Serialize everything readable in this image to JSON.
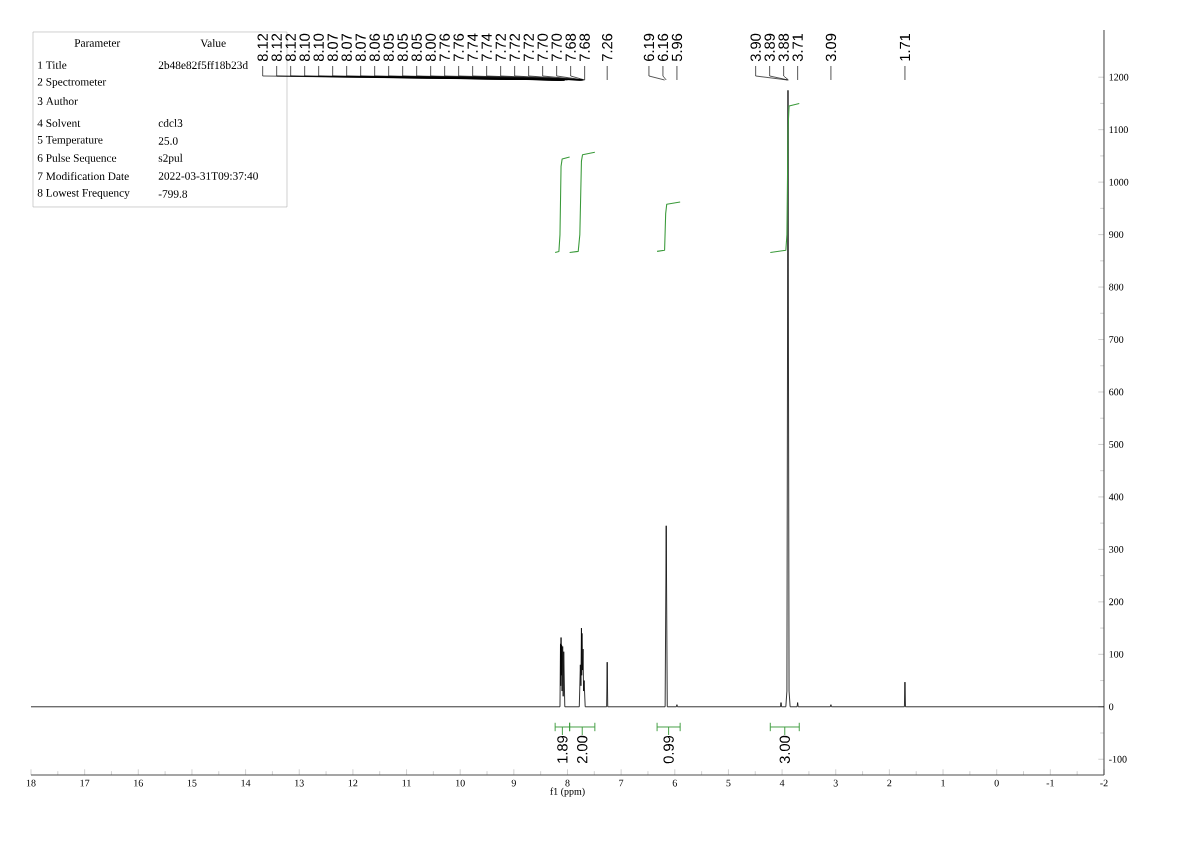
{
  "chart_data": {
    "type": "line",
    "xlabel": "f1 (ppm)",
    "xlim": [
      18,
      -2
    ],
    "ylim": [
      -130,
      1290
    ],
    "xticks": [
      18,
      17,
      16,
      15,
      14,
      13,
      12,
      11,
      10,
      9,
      8,
      7,
      6,
      5,
      4,
      3,
      2,
      1,
      0,
      -1,
      -2
    ],
    "yticks": [
      -100,
      0,
      100,
      200,
      300,
      400,
      500,
      600,
      700,
      800,
      900,
      1000,
      1100,
      1200
    ],
    "series": [
      {
        "color": "#000000",
        "x": [
          18,
          8.2,
          8.14,
          8.13,
          8.125,
          8.12,
          8.115,
          8.11,
          8.1,
          8.09,
          8.08,
          8.07,
          8.05,
          7.78,
          7.76,
          7.75,
          7.74,
          7.735,
          7.73,
          7.72,
          7.71,
          7.7,
          7.69,
          7.67,
          7.27,
          7.26,
          7.25,
          6.18,
          6.16,
          6.14,
          5.97,
          5.96,
          5.95,
          4.03,
          4.02,
          4.01,
          3.93,
          3.91,
          3.89,
          3.87,
          3.85,
          3.72,
          3.71,
          3.7,
          3.1,
          3.09,
          3.08,
          1.72,
          1.71,
          1.7,
          -2
        ],
        "values": [
          0,
          0,
          0,
          120,
          40,
          132,
          60,
          118,
          30,
          115,
          20,
          105,
          0,
          0,
          80,
          40,
          150,
          60,
          140,
          70,
          110,
          30,
          50,
          0,
          0,
          85,
          0,
          0,
          345,
          0,
          0,
          4,
          0,
          0,
          8,
          0,
          0,
          30,
          1175,
          30,
          0,
          0,
          8,
          0,
          0,
          4,
          0,
          0,
          47,
          0,
          0
        ]
      },
      {
        "color": "#3a9a3a",
        "x": [
          8.23,
          8.16,
          8.14,
          8.12,
          8.1,
          7.96
        ],
        "values": [
          866,
          868,
          900,
          1030,
          1044,
          1048
        ]
      },
      {
        "color": "#3a9a3a",
        "x": [
          7.96,
          7.8,
          7.77,
          7.74,
          7.72,
          7.49
        ],
        "values": [
          866,
          868,
          900,
          1040,
          1052,
          1057
        ]
      },
      {
        "color": "#3a9a3a",
        "x": [
          6.33,
          6.19,
          6.17,
          6.15,
          5.9
        ],
        "values": [
          868,
          870,
          940,
          958,
          962
        ]
      },
      {
        "color": "#3a9a3a",
        "x": [
          4.22,
          3.93,
          3.91,
          3.89,
          3.87,
          3.68
        ],
        "values": [
          866,
          870,
          900,
          1100,
          1145,
          1150
        ]
      }
    ],
    "annotations": [
      "Parameter",
      "Value",
      "1 Title",
      "2b48e82f5ff18b23d",
      "2 Spectrometer",
      "3 Author",
      "4 Solvent",
      "cdcl3",
      "5 Temperature",
      "25.0",
      "6 Pulse Sequence",
      "s2pul",
      "7 Modification Date",
      "2022-03-31T09:37:40",
      "8 Lowest Frequency",
      "-799.8",
      {
        "text": "8.12",
        "x": 8.12
      },
      {
        "text": "8.12",
        "x": 8.12
      },
      {
        "text": "8.12",
        "x": 8.12
      },
      {
        "text": "8.10",
        "x": 8.1
      },
      {
        "text": "8.10",
        "x": 8.1
      },
      {
        "text": "8.07",
        "x": 8.07
      },
      {
        "text": "8.07",
        "x": 8.07
      },
      {
        "text": "8.07",
        "x": 8.07
      },
      {
        "text": "8.06",
        "x": 8.06
      },
      {
        "text": "8.05",
        "x": 8.05
      },
      {
        "text": "8.05",
        "x": 8.05
      },
      {
        "text": "8.05",
        "x": 8.05
      },
      {
        "text": "8.00",
        "x": 8.0
      },
      {
        "text": "7.76",
        "x": 7.76
      },
      {
        "text": "7.76",
        "x": 7.76
      },
      {
        "text": "7.74",
        "x": 7.74
      },
      {
        "text": "7.74",
        "x": 7.74
      },
      {
        "text": "7.72",
        "x": 7.72
      },
      {
        "text": "7.72",
        "x": 7.72
      },
      {
        "text": "7.72",
        "x": 7.72
      },
      {
        "text": "7.70",
        "x": 7.7
      },
      {
        "text": "7.70",
        "x": 7.7
      },
      {
        "text": "7.68",
        "x": 7.68
      },
      {
        "text": "7.68",
        "x": 7.68
      },
      {
        "text": "7.26",
        "x": 7.26
      },
      {
        "text": "6.19",
        "x": 6.19
      },
      {
        "text": "6.16",
        "x": 6.16
      },
      {
        "text": "5.96",
        "x": 5.96
      },
      {
        "text": "3.90",
        "x": 3.9
      },
      {
        "text": "3.89",
        "x": 3.89
      },
      {
        "text": "3.88",
        "x": 3.88
      },
      {
        "text": "3.71",
        "x": 3.71
      },
      {
        "text": "3.09",
        "x": 3.09
      },
      {
        "text": "1.71",
        "x": 1.71
      },
      "1.89",
      "2.00",
      "0.99",
      "3.00"
    ]
  }
}
